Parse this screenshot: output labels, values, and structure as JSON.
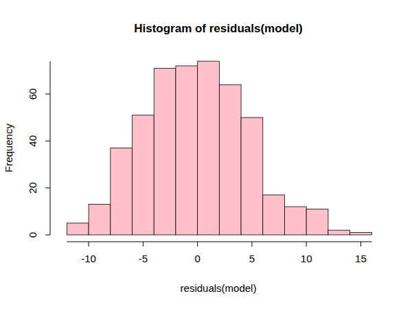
{
  "chart_data": {
    "type": "histogram",
    "title": "Histogram of residuals(model)",
    "x_label": "residuals(model)",
    "y_label": "Frequency",
    "bins": [
      -12,
      -10,
      -8,
      -6,
      -4,
      -2,
      0,
      2,
      4,
      6,
      8,
      10,
      12,
      14,
      16
    ],
    "values": [
      5,
      13,
      37,
      51,
      71,
      72,
      74,
      64,
      50,
      17,
      12,
      11,
      2,
      1
    ],
    "color": "#ffc0cb",
    "xlim": [
      -12,
      16
    ],
    "xticks": [
      -10,
      -5,
      0,
      5,
      10,
      15
    ],
    "ylim": [
      0,
      74
    ],
    "yticks": [
      0,
      20,
      40,
      60
    ],
    "grid": false
  }
}
